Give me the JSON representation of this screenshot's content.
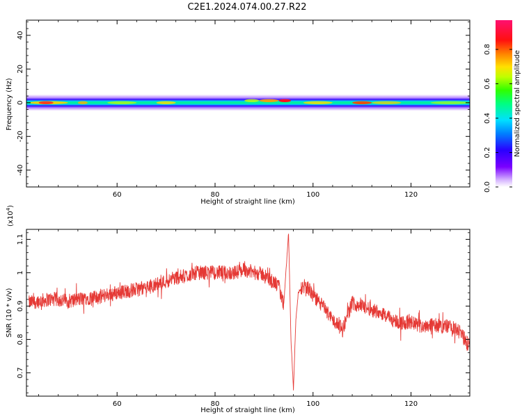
{
  "title": "C2E1.2024.074.00.27.R22",
  "colors": {
    "snr_line": "#e53935",
    "band_core": "#00e0a0",
    "band_edge": "#3300ff",
    "band_halo": "#cfa8ff"
  },
  "chart_data": [
    {
      "type": "heatmap",
      "name": "spectrogram",
      "xlabel": "Height of straight line (km)",
      "ylabel": "Frequency (Hz)",
      "xlim": [
        41.5,
        132
      ],
      "ylim": [
        -50,
        49
      ],
      "x_ticks": [
        60,
        80,
        100,
        120
      ],
      "y_ticks": [
        -40,
        -20,
        0,
        20,
        40
      ],
      "grid": false,
      "colorbar": {
        "label": "Normalized spectral amplitude",
        "range": [
          0.0,
          0.97
        ],
        "ticks": [
          0.0,
          0.2,
          0.4,
          0.6,
          0.8
        ],
        "colormap": "rainbow (violet-blue-cyan-green-yellow-red-magenta)"
      },
      "band": {
        "center_freq_hz": 0,
        "halfwidth_hz": 2,
        "peak_height_km": 95,
        "peak_amplitude": 0.97
      }
    },
    {
      "type": "line",
      "name": "snr",
      "xlabel": "Height of straight line (km)",
      "ylabel": "SNR (10 * v/v)",
      "y_multiplier_label": "(x10",
      "y_multiplier_exp": "4",
      "y_multiplier_close": ")",
      "xlim": [
        41.5,
        132
      ],
      "ylim": [
        0.63,
        1.13
      ],
      "x_ticks": [
        60,
        80,
        100,
        120
      ],
      "y_ticks": [
        0.7,
        0.8,
        0.9,
        1.0,
        1.1
      ],
      "grid": false,
      "series": [
        {
          "x": [
            42,
            44,
            46,
            48,
            50,
            52,
            54,
            56,
            58,
            60,
            62,
            64,
            66,
            68,
            70,
            72,
            74,
            76,
            78,
            80,
            82,
            84,
            86,
            88,
            90,
            91,
            92,
            93,
            94,
            95,
            95.5,
            96,
            96.5,
            97,
            98,
            99,
            100,
            102,
            104,
            106,
            108,
            110,
            112,
            114,
            116,
            118,
            120,
            122,
            124,
            126,
            128,
            130,
            132
          ],
          "y": [
            0.91,
            0.915,
            0.92,
            0.92,
            0.915,
            0.92,
            0.925,
            0.925,
            0.935,
            0.94,
            0.945,
            0.95,
            0.955,
            0.965,
            0.975,
            0.985,
            0.99,
            1.0,
            1.0,
            1.0,
            1.0,
            1.0,
            1.01,
            1.0,
            0.995,
            0.98,
            0.97,
            0.96,
            0.9,
            1.12,
            0.8,
            0.65,
            0.86,
            0.94,
            0.96,
            0.955,
            0.93,
            0.9,
            0.86,
            0.83,
            0.91,
            0.9,
            0.89,
            0.88,
            0.86,
            0.85,
            0.85,
            0.84,
            0.845,
            0.84,
            0.84,
            0.82,
            0.78
          ]
        }
      ]
    }
  ]
}
